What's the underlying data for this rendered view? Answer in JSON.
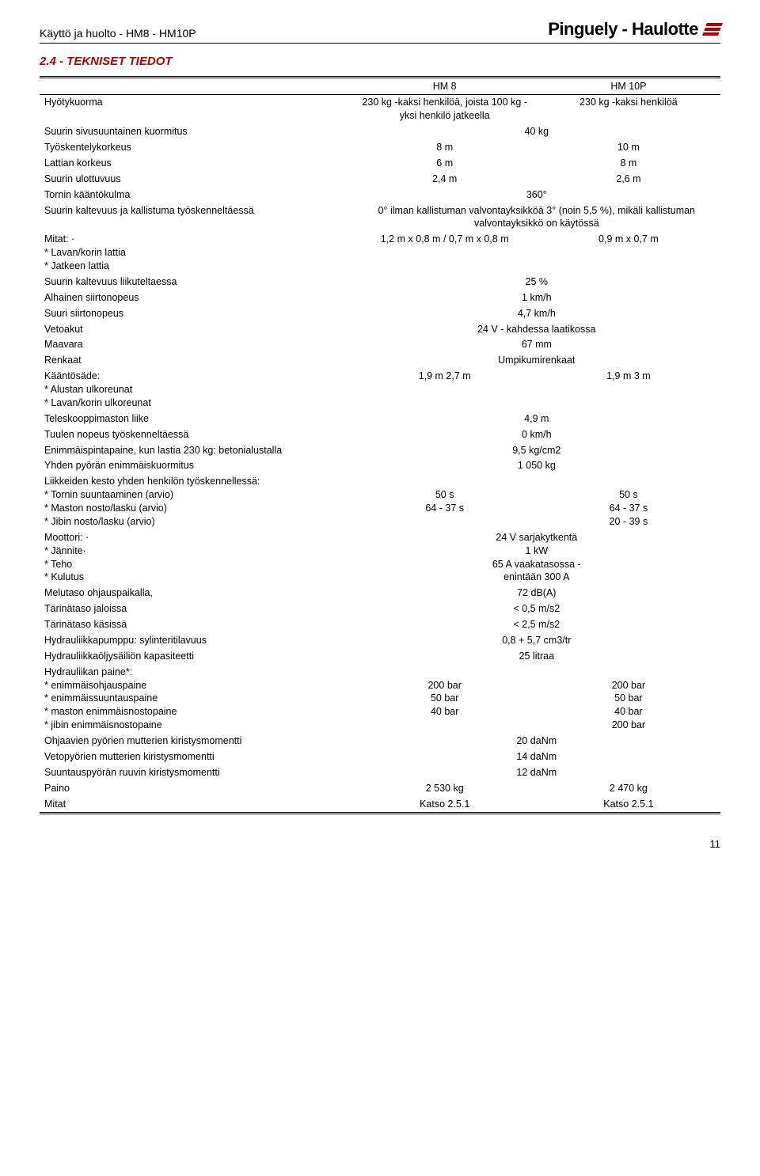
{
  "header": {
    "left": "Käyttö ja huolto - HM8 - HM10P",
    "brand": "Pinguely - Haulotte"
  },
  "section_title": "2.4 -   TEKNISET TIEDOT",
  "cols": {
    "a": "HM 8",
    "b": "HM 10P"
  },
  "rows": {
    "hyoty_label": "Hyötykuorma",
    "hyoty_a": "230 kg -kaksi henkilöä, joista 100 kg - yksi henkilö jatkeella",
    "hyoty_b": "230 kg -kaksi henkilöä",
    "sivusuunt_label": "Suurin sivusuuntainen kuormitus",
    "sivusuunt_v": "40 kg",
    "tyosk_label": "Työskentelykorkeus",
    "tyosk_a": "8 m",
    "tyosk_b": "10 m",
    "lattia_label": "Lattian korkeus",
    "lattia_a": "6 m",
    "lattia_b": "8 m",
    "ulott_label": "Suurin ulottuvuus",
    "ulott_a": "2,4 m",
    "ulott_b": "2,6 m",
    "tornin_label": "Tornin kääntökulma",
    "tornin_v": "360°",
    "kalt_label": "Suurin kaltevuus ja kallistuma työskenneltäessä",
    "kalt_v": "0° ilman kallistuman valvontayksikköä 3° (noin 5,5 %), mikäli kallistuman valvontayksikkö on käytössä",
    "mitat_label": "Mitat: ·\n* Lavan/korin lattia\n* Jatkeen lattia",
    "mitat_a": "1,2 m x 0,8 m / 0,7 m x 0,8 m",
    "mitat_b": "0,9 m x 0,7 m",
    "kaltliik_label": "Suurin kaltevuus liikuteltaessa",
    "kaltliik_v": "25 %",
    "alh_label": "Alhainen siirtonopeus",
    "alh_v": "1 km/h",
    "suuri_label": "Suuri siirtonopeus",
    "suuri_v": "4,7 km/h",
    "veto_label": "Vetoakut",
    "veto_v": "24 V - kahdessa laatikossa",
    "maav_label": "Maavara",
    "maav_v": "67 mm",
    "renk_label": "Renkaat",
    "renk_v": "Umpikumirenkaat",
    "kaanto_label": "Kääntösäde:\n* Alustan ulkoreunat\n* Lavan/korin ulkoreunat",
    "kaanto_a": "1,9 m 2,7 m",
    "kaanto_b": "1,9 m 3 m",
    "teles_label": "Teleskooppimaston liike",
    "teles_v": "4,9 m",
    "tuuli_label": "Tuulen nopeus työskenneltäessä",
    "tuuli_v": "0 km/h",
    "enim_label": "Enimmäispintapaine, kun lastia 230 kg: betonialustalla",
    "enim_v": "9,5 kg/cm2",
    "pyora_label": "Yhden pyörän enimmäiskuormitus",
    "pyora_v": "1 050 kg",
    "liik_label": "Liikkeiden kesto yhden henkilön työskennellessä:\n* Tornin suuntaaminen (arvio)\n* Maston nosto/lasku (arvio)\n* Jibin nosto/lasku (arvio)",
    "liik_a": "\n50 s\n64 - 37 s",
    "liik_b": "\n50 s\n64 - 37 s\n20 - 39 s",
    "moot_label": "Moottori: ·\n* Jännite·\n* Teho\n* Kulutus",
    "moot_v": "24 V sarjakytkentä\n1 kW\n65 A vaakatasossa -\nenintään 300 A",
    "melu_label": "Melutaso ohjauspaikalla,",
    "melu_v": "72 dB(A)",
    "tarj_label": "Tärinätaso jaloissa",
    "tarj_v": "< 0,5 m/s2",
    "tark_label": "Tärinätaso käsissä",
    "tark_v": "< 2,5 m/s2",
    "hydp_label": "Hydrauliikkapumppu:  sylinteritilavuus",
    "hydp_v": "0,8 + 5,7 cm3/tr",
    "hydo_label": "Hydrauliikkaöljysäiliön kapasiteetti",
    "hydo_v": "25 litraa",
    "paine_label": "Hydrauliikan paine*:\n* enimmäisohjauspaine\n* enimmäissuuntauspaine\n* maston enimmäisnostopaine\n* jibin enimmäisnostopaine",
    "paine_a": "\n200 bar\n50 bar\n40 bar",
    "paine_b": "\n200 bar\n50 bar\n40 bar\n200 bar",
    "ohj_label": "Ohjaavien pyörien mutterien kiristysmomentti",
    "ohj_v": "20 daNm",
    "vetop_label": "Vetopyörien mutterien kiristysmomentti",
    "vetop_v": "14 daNm",
    "suunt_label": "Suuntauspyörän ruuvin kiristysmomentti",
    "suunt_v": "12 daNm",
    "paino_label": "Paino",
    "paino_a": "2 530 kg",
    "paino_b": "2 470 kg",
    "mitatref_label": "Mitat",
    "mitatref_a": "Katso 2.5.1",
    "mitatref_b": "Katso 2.5.1"
  },
  "page_number": "11"
}
